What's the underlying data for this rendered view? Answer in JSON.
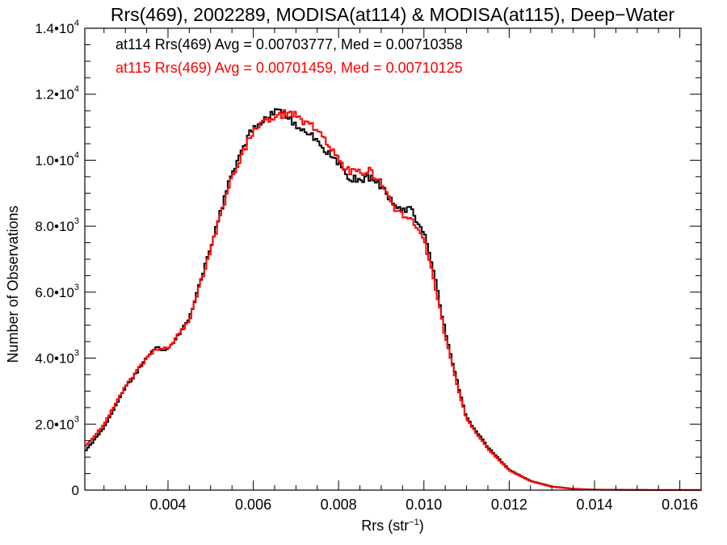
{
  "chart_data": {
    "type": "line",
    "title": "Rrs(469), 2002289, MODISA(at114) & MODISA(at115), Deep−Water",
    "xlabel_main": "Rrs (str",
    "xlabel_sup": "−1",
    "xlabel_close": ")",
    "ylabel": "Number of Observations",
    "xlim": [
      0.00205,
      0.0165
    ],
    "ylim": [
      0,
      14000
    ],
    "x_ticks": [
      0.004,
      0.006,
      0.008,
      0.01,
      0.012,
      0.014,
      0.016
    ],
    "x_tick_labels": [
      "0.004",
      "0.006",
      "0.008",
      "0.010",
      "0.012",
      "0.014",
      "0.016"
    ],
    "y_ticks": [
      0,
      2000,
      4000,
      6000,
      8000,
      10000,
      12000,
      14000
    ],
    "y_tick_labels": [
      {
        "base": "0",
        "exp": ""
      },
      {
        "base": "2.0•10",
        "exp": "3"
      },
      {
        "base": "4.0•10",
        "exp": "3"
      },
      {
        "base": "6.0•10",
        "exp": "3"
      },
      {
        "base": "8.0•10",
        "exp": "3"
      },
      {
        "base": "1.0•10",
        "exp": "4"
      },
      {
        "base": "1.2•10",
        "exp": "4"
      },
      {
        "base": "1.4•10",
        "exp": "4"
      }
    ],
    "annotations": [
      {
        "text": "at114 Rrs(469) Avg = 0.00703777, Med = 0.00710358",
        "color": "#000000"
      },
      {
        "text": "at115 Rrs(469) Avg = 0.00701459, Med = 0.00710125",
        "color": "#ff0000"
      }
    ],
    "grid": false,
    "bin_width": 5e-05,
    "series": [
      {
        "color": "#000000",
        "x": [
          0.00205,
          0.0025,
          0.003,
          0.0035,
          0.0037,
          0.004,
          0.0045,
          0.005,
          0.0055,
          0.006,
          0.0063,
          0.0066,
          0.0068,
          0.007,
          0.0075,
          0.008,
          0.0082,
          0.0085,
          0.0087,
          0.009,
          0.0093,
          0.0095,
          0.0097,
          0.01,
          0.0103,
          0.0105,
          0.0108,
          0.011,
          0.0115,
          0.012,
          0.0125,
          0.013,
          0.0135,
          0.014,
          0.015,
          0.0165
        ],
        "y": [
          1150,
          1900,
          3100,
          4000,
          4300,
          4250,
          5200,
          7400,
          9600,
          11000,
          11300,
          11500,
          11300,
          11100,
          10600,
          9900,
          9500,
          9400,
          9500,
          9200,
          8700,
          8500,
          8500,
          7800,
          6200,
          4800,
          3200,
          2200,
          1300,
          620,
          280,
          110,
          40,
          15,
          5,
          2
        ]
      },
      {
        "color": "#ff0000",
        "x": [
          0.00205,
          0.0025,
          0.003,
          0.0035,
          0.0037,
          0.004,
          0.0045,
          0.005,
          0.0055,
          0.006,
          0.0063,
          0.0066,
          0.0068,
          0.007,
          0.0075,
          0.008,
          0.0082,
          0.0085,
          0.0087,
          0.009,
          0.0093,
          0.0095,
          0.0097,
          0.01,
          0.0103,
          0.0105,
          0.0108,
          0.011,
          0.0115,
          0.012,
          0.0125,
          0.013,
          0.0135,
          0.014,
          0.015,
          0.0165
        ],
        "y": [
          1300,
          2000,
          3150,
          4000,
          4250,
          4300,
          5150,
          7300,
          9500,
          10900,
          11200,
          11350,
          11450,
          11350,
          10900,
          10000,
          9700,
          9600,
          9700,
          9300,
          8500,
          8350,
          8300,
          7600,
          6000,
          4650,
          3100,
          2150,
          1250,
          600,
          270,
          100,
          35,
          12,
          4,
          2
        ]
      }
    ]
  }
}
